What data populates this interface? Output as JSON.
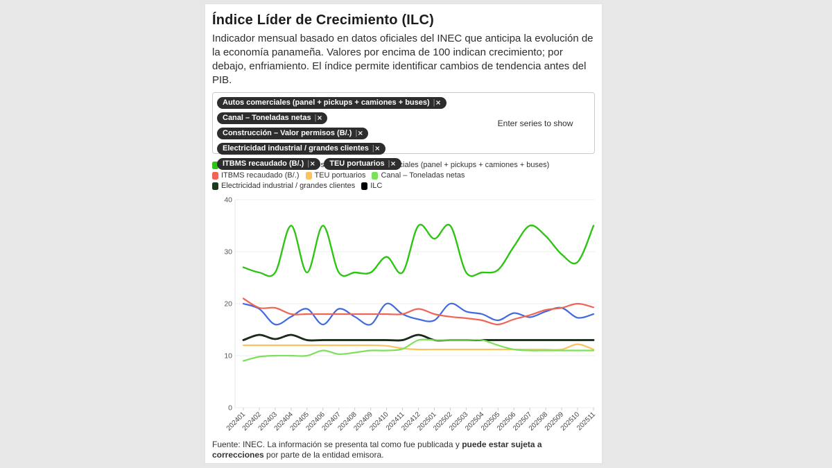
{
  "card": {
    "title": "Índice Líder de Crecimiento (ILC)",
    "description": "Indicador mensual basado en datos oficiales del INEC que anticipa la evolución de la economía panameña. Valores por encima de 100 indican crecimiento; por debajo, enfriamiento. El índice permite identificar cambios de tendencia antes del PIB.",
    "series_input": {
      "chips": [
        {
          "label": "Autos comerciales (panel + pickups + camiones + buses)"
        },
        {
          "label": "Canal – Toneladas netas"
        },
        {
          "label": "Construcción – Valor permisos (B/.)"
        },
        {
          "label": "Electricidad industrial / grandes clientes"
        },
        {
          "label": "ITBMS recaudado (B/.)"
        },
        {
          "label": "TEU portuarios"
        }
      ],
      "remove_icon": "×",
      "placeholder": "Enter series to show"
    },
    "footer": {
      "prefix": "Fuente: INEC. La información se presenta tal como fue publicada y ",
      "bold": "puede estar sujeta a correcciones",
      "suffix": " por parte de la entidad emisora."
    }
  },
  "chart_data": {
    "type": "line",
    "x": [
      "202401",
      "202402",
      "202403",
      "202404",
      "202405",
      "202406",
      "202407",
      "202408",
      "202409",
      "202410",
      "202411",
      "202412",
      "202501",
      "202502",
      "202503",
      "202504",
      "202505",
      "202506",
      "202507",
      "202508",
      "202509",
      "202510",
      "202511"
    ],
    "ylim": [
      0,
      40
    ],
    "yticks": [
      0,
      10,
      20,
      30,
      40
    ],
    "grid": true,
    "legend_position": "top-left",
    "series": [
      {
        "id": "construccion",
        "name": "Construcción – Valor permisos (B/.)",
        "color": "#2ec414",
        "values": [
          27,
          26,
          26,
          35,
          26,
          35,
          26,
          26,
          26,
          29,
          26,
          35,
          32.5,
          35,
          26,
          26,
          26.5,
          31,
          35,
          33,
          29.5,
          28,
          35
        ]
      },
      {
        "id": "autos",
        "name": "Autos comerciales (panel + pickups + camiones + buses)",
        "color": "#4169e1",
        "values": [
          20,
          19,
          16,
          17.5,
          19,
          16,
          19,
          17.5,
          16,
          20,
          18,
          17,
          16.8,
          20,
          18.5,
          18,
          16.8,
          18.2,
          17.4,
          18.5,
          19.2,
          17.3,
          18
        ]
      },
      {
        "id": "itbms",
        "name": "ITBMS recaudado (B/.)",
        "color": "#ef6456",
        "values": [
          21,
          19.2,
          19.2,
          18,
          18,
          18,
          18,
          18,
          18,
          18,
          18,
          19,
          18,
          17.5,
          17.2,
          16.8,
          16,
          17,
          17.8,
          18.8,
          19.2,
          20,
          19.3
        ]
      },
      {
        "id": "teu",
        "name": "TEU portuarios",
        "color": "#fcc35c",
        "values": [
          12,
          12,
          12,
          12,
          12,
          12,
          12,
          12,
          12,
          11.9,
          11.4,
          11.2,
          11.2,
          11.2,
          11.2,
          11.2,
          11.2,
          11.2,
          11.2,
          11.2,
          11.2,
          12.2,
          11.2
        ]
      },
      {
        "id": "canal",
        "name": "Canal – Toneladas netas",
        "color": "#7de05a",
        "values": [
          9,
          9.8,
          10,
          10,
          10,
          11,
          10.3,
          10.6,
          11,
          11,
          11.3,
          13,
          13,
          13,
          13,
          13,
          12,
          11.2,
          11,
          11,
          11,
          11,
          11
        ]
      },
      {
        "id": "electricidad",
        "name": "Electricidad industrial / grandes clientes",
        "color": "#1c3a1c",
        "values": [
          13,
          14,
          13.2,
          14,
          13,
          13,
          13,
          13,
          13,
          13,
          13,
          14,
          13,
          13,
          13,
          13,
          13,
          13,
          13,
          13,
          13,
          13,
          13
        ]
      },
      {
        "id": "ilc",
        "name": "ILC",
        "color": "#000000",
        "values": [
          13,
          14,
          13.2,
          14,
          13,
          13,
          13,
          13,
          13,
          13,
          13,
          14,
          13,
          13,
          13,
          13,
          13,
          13,
          13,
          13,
          13,
          13,
          13
        ]
      }
    ]
  }
}
